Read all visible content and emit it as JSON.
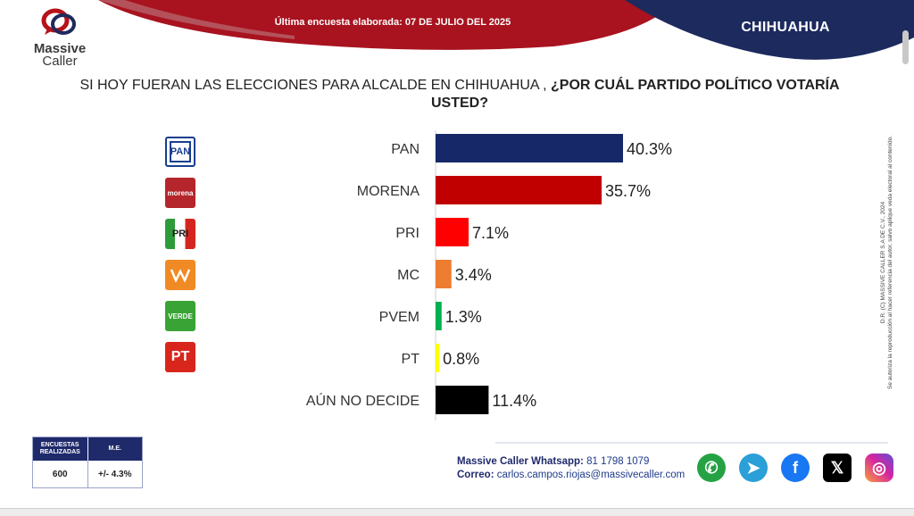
{
  "header": {
    "logo_line1": "Massive",
    "logo_line2": "Caller",
    "survey_date": "Última encuesta elaborada: 07 DE JULIO DEL 2025",
    "state": "CHIHUAHUA",
    "band_colors": {
      "red": "#a8131f",
      "navy": "#1d2a5e"
    }
  },
  "question": {
    "plain": "SI HOY FUERAN LAS ELECCIONES PARA ALCALDE EN CHIHUAHUA , ",
    "bold": "¿POR CUÁL PARTIDO POLÍTICO VOTARÍA USTED?"
  },
  "side_note": {
    "line1": "D.R. (C) MASSIVE CALLER S.A DE C.V., 2024",
    "line2": "Se autoriza la reproducción al hacer referencia del autor, salvo aplique veda electoral al contenido."
  },
  "party_icons": [
    {
      "name": "pan-logo-icon",
      "text": "PAN",
      "color": "#1a3f8f"
    },
    {
      "name": "morena-logo-icon",
      "text": "morena",
      "color": "#b4262b"
    },
    {
      "name": "pri-logo-icon",
      "text": "PRI",
      "color": "#d4261f"
    },
    {
      "name": "mc-logo-icon",
      "text": "",
      "color": "#f08a24"
    },
    {
      "name": "pvem-logo-icon",
      "text": "VERDE",
      "color": "#3aa335"
    },
    {
      "name": "pt-logo-icon",
      "text": "PT",
      "color": "#d9261c"
    }
  ],
  "chart_data": {
    "type": "bar",
    "orientation": "horizontal",
    "categories": [
      "PAN",
      "MORENA",
      "PRI",
      "MC",
      "PVEM",
      "PT",
      "AÚN NO DECIDE"
    ],
    "values": [
      40.3,
      35.7,
      7.1,
      3.4,
      1.3,
      0.8,
      11.4
    ],
    "value_labels": [
      "40.3%",
      "35.7%",
      "7.1%",
      "3.4%",
      "1.3%",
      "0.8%",
      "11.4%"
    ],
    "colors": [
      "#172868",
      "#c00000",
      "#ff0000",
      "#ed7d31",
      "#00b050",
      "#ffff00",
      "#000000"
    ],
    "xlim": [
      0,
      40.3
    ],
    "grid": false,
    "legend": "none"
  },
  "stats": {
    "col1_header": "ENCUESTAS REALIZADAS",
    "col2_header": "M.E.",
    "col1_value": "600",
    "col2_value": "+/- 4.3%"
  },
  "contact": {
    "whatsapp_label": "Massive Caller Whatsapp:",
    "whatsapp_value": "81 1798 1079",
    "email_label": "Correo:",
    "email_value": "carlos.campos.riojas@massivecaller.com"
  },
  "social_icons": [
    {
      "name": "whatsapp-icon",
      "glyph": "✆",
      "color": "#25a244"
    },
    {
      "name": "telegram-icon",
      "glyph": "➤",
      "color": "#2a9fd8"
    },
    {
      "name": "facebook-icon",
      "glyph": "f",
      "color": "#1877f2"
    },
    {
      "name": "x-icon",
      "glyph": "𝕏",
      "color": "#000000"
    },
    {
      "name": "instagram-icon",
      "glyph": "◎",
      "color": "#d6249f"
    }
  ]
}
